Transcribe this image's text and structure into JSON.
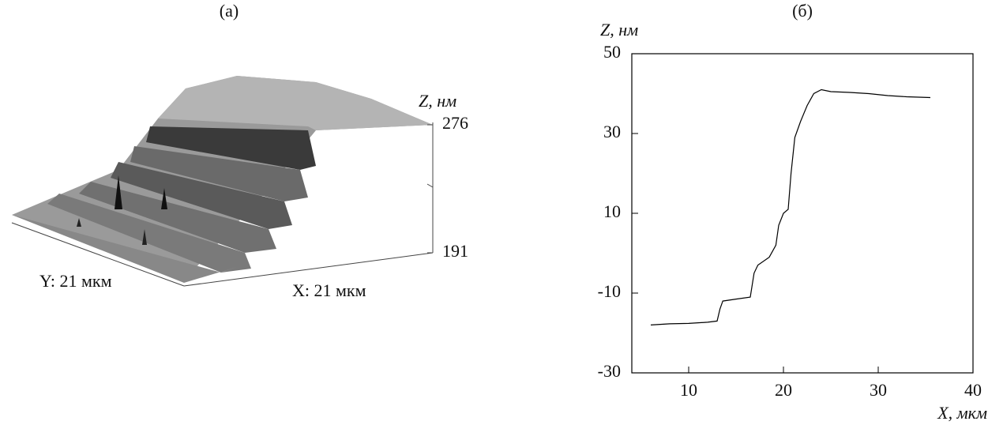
{
  "chart_data": [
    {
      "type": "surface",
      "title": "(a)",
      "zlabel": "Z, нм",
      "xlabel": "X: 21 мкм",
      "ylabel": "Y: 21 мкм",
      "zlim": [
        191,
        276
      ],
      "zticks": [
        191,
        276
      ]
    },
    {
      "type": "line",
      "title": "(б)",
      "ylabel": "Z, нм",
      "xlabel": "X, мкм",
      "xlim": [
        4,
        40
      ],
      "ylim": [
        -30,
        50
      ],
      "xticks": [
        10,
        20,
        30,
        40
      ],
      "yticks": [
        -30,
        -10,
        10,
        30,
        50
      ],
      "series": [
        {
          "color": "#000000",
          "x": [
            6,
            8,
            10,
            12,
            13,
            13.3,
            13.6,
            15,
            16.5,
            16.9,
            17.3,
            18.5,
            19.2,
            19.5,
            20,
            20.5,
            20.8,
            21.2,
            21.8,
            22.5,
            23.2,
            24,
            25,
            27,
            29,
            31,
            33,
            35.5
          ],
          "values": [
            -18,
            -17.7,
            -17.6,
            -17.3,
            -17,
            -14,
            -12,
            -11.5,
            -11,
            -5,
            -3,
            -1,
            2,
            7,
            10,
            11,
            20,
            29,
            33,
            37,
            40,
            41,
            40.5,
            40.3,
            40,
            39.5,
            39.2,
            39
          ]
        }
      ]
    }
  ]
}
